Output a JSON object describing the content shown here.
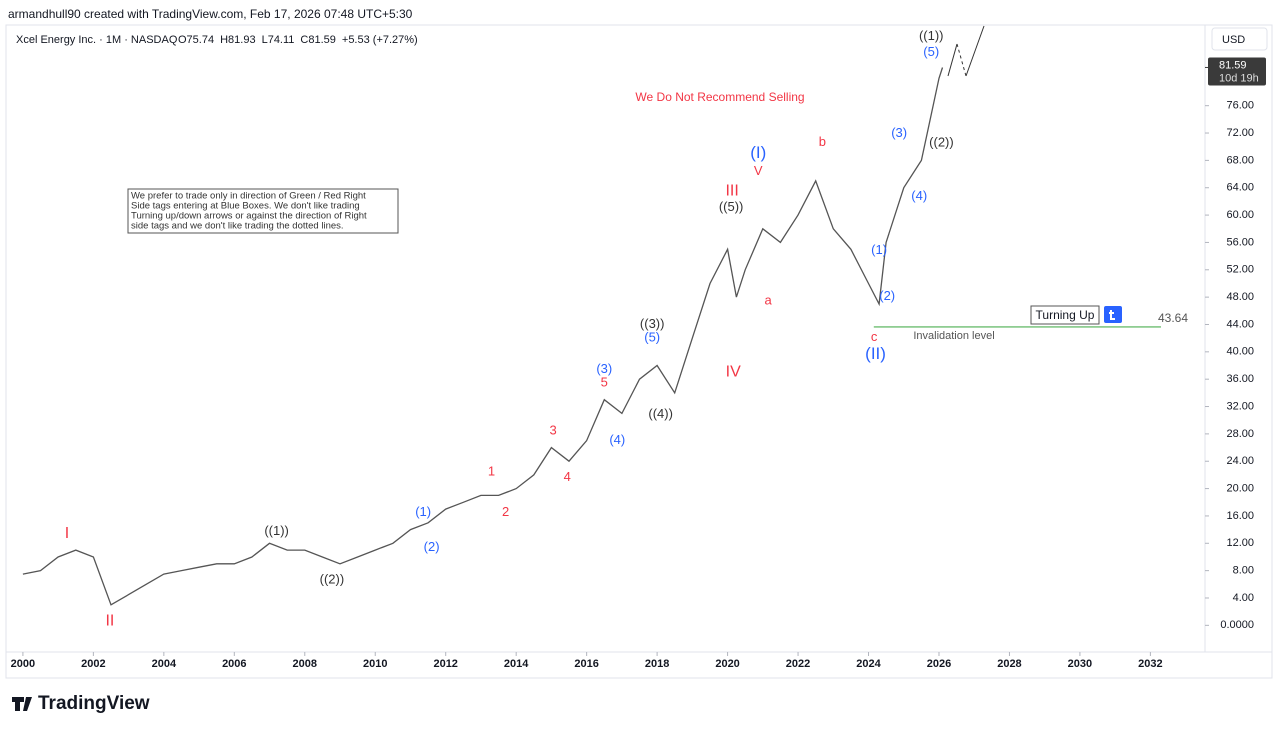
{
  "header": "armandhull90 created with TradingView.com, Feb 17, 2026 07:48 UTC+5:30",
  "brand": "TradingView",
  "chart_data": {
    "type": "line",
    "legend_title": "Xcel Energy Inc. · 1M · NASDAQ",
    "ohlc": [
      "O75.74",
      "H81.93",
      "L74.11",
      "C81.59",
      "+5.53 (+7.27%)"
    ],
    "currency": "USD",
    "last_price": 81.59,
    "countdown": "10d 19h",
    "headline": "We Do Not Recommend Selling",
    "note": [
      "We prefer to trade only in direction of Green / Red Right",
      "Side tags entering at Blue Boxes. We don't like trading",
      "Turning up/down arrows or against the direction of Right",
      "side tags and we don't like trading the dotted lines."
    ],
    "signal": "Turning Up",
    "invalidation": {
      "value": 43.64,
      "label": "Invalidation level",
      "color": "#4caf50"
    },
    "series": [
      {
        "name": "Xcel Energy Inc.",
        "color": "#555555",
        "x": [
          2000.0,
          2000.5,
          2001.0,
          2001.5,
          2002.0,
          2002.5,
          2003.0,
          2003.5,
          2004.0,
          2004.5,
          2005.0,
          2005.5,
          2006.0,
          2006.5,
          2007.0,
          2007.5,
          2008.0,
          2008.5,
          2009.0,
          2009.5,
          2010.0,
          2010.5,
          2011.0,
          2011.5,
          2012.0,
          2012.5,
          2013.0,
          2013.5,
          2014.0,
          2014.5,
          2015.0,
          2015.5,
          2016.0,
          2016.5,
          2017.0,
          2017.5,
          2018.0,
          2018.5,
          2019.0,
          2019.5,
          2020.0,
          2020.25,
          2020.5,
          2021.0,
          2021.5,
          2022.0,
          2022.5,
          2023.0,
          2023.5,
          2024.0,
          2024.3,
          2024.5,
          2025.0,
          2025.5,
          2026.0,
          2026.1
        ],
        "values": [
          7.5,
          8,
          10,
          11,
          10,
          3,
          4.5,
          6,
          7.5,
          8,
          8.5,
          9,
          9,
          10,
          12,
          11,
          11,
          10,
          9,
          10,
          11,
          12,
          14,
          15,
          17,
          18,
          19,
          19,
          20,
          22,
          26,
          24,
          27,
          33,
          31,
          36,
          38,
          34,
          42,
          50,
          55,
          48,
          52,
          58,
          56,
          60,
          65,
          58,
          55,
          50,
          47,
          56,
          64,
          68,
          80,
          81.59
        ]
      }
    ],
    "xlim": [
      1999.35,
      2033.55
    ],
    "xticks": [
      2000,
      2002,
      2004,
      2006,
      2008,
      2010,
      2012,
      2014,
      2016,
      2018,
      2020,
      2022,
      2024,
      2026,
      2028,
      2030,
      2032
    ],
    "ylim": [
      -3.9,
      87.8
    ],
    "yticks": [
      {
        "value": 0,
        "label": "0.0000"
      },
      {
        "value": 4,
        "label": "4.00"
      },
      {
        "value": 8,
        "label": "8.00"
      },
      {
        "value": 12,
        "label": "12.00"
      },
      {
        "value": 16,
        "label": "16.00"
      },
      {
        "value": 20,
        "label": "20.00"
      },
      {
        "value": 24,
        "label": "24.00"
      },
      {
        "value": 28,
        "label": "28.00"
      },
      {
        "value": 32,
        "label": "32.00"
      },
      {
        "value": 36,
        "label": "36.00"
      },
      {
        "value": 40,
        "label": "40.00"
      },
      {
        "value": 44,
        "label": "44.00"
      },
      {
        "value": 48,
        "label": "48.00"
      },
      {
        "value": 52,
        "label": "52.00"
      },
      {
        "value": 56,
        "label": "56.00"
      },
      {
        "value": 60,
        "label": "60.00"
      },
      {
        "value": 64,
        "label": "64.00"
      },
      {
        "value": 68,
        "label": "68.00"
      },
      {
        "value": 72,
        "label": "72.00"
      },
      {
        "value": 76,
        "label": "76.00"
      }
    ],
    "annotations": [
      {
        "text": "I",
        "color": "#f23645"
      },
      {
        "text": "II",
        "color": "#f23645"
      },
      {
        "text": "((1))",
        "color": "#333333"
      },
      {
        "text": "((2))",
        "color": "#333333"
      },
      {
        "text": "(1)",
        "color": "#2962ff"
      },
      {
        "text": "(2)",
        "color": "#2962ff"
      },
      {
        "text": "1",
        "color": "#f23645"
      },
      {
        "text": "2",
        "color": "#f23645"
      },
      {
        "text": "3",
        "color": "#f23645"
      },
      {
        "text": "4",
        "color": "#f23645"
      },
      {
        "text": "(3)",
        "color": "#2962ff"
      },
      {
        "text": "5",
        "color": "#f23645"
      },
      {
        "text": "(4)",
        "color": "#2962ff"
      },
      {
        "text": "((3))",
        "color": "#333333"
      },
      {
        "text": "(5)",
        "color": "#2962ff"
      },
      {
        "text": "((4))",
        "color": "#333333"
      },
      {
        "text": "III",
        "color": "#f23645"
      },
      {
        "text": "((5))",
        "color": "#333333"
      },
      {
        "text": "IV",
        "color": "#f23645"
      },
      {
        "text": "(I)",
        "color": "#2962ff"
      },
      {
        "text": "V",
        "color": "#f23645"
      },
      {
        "text": "a",
        "color": "#f23645"
      },
      {
        "text": "b",
        "color": "#f23645"
      },
      {
        "text": "c",
        "color": "#f23645"
      },
      {
        "text": "(II)",
        "color": "#2962ff"
      },
      {
        "text": "(1)",
        "color": "#2962ff"
      },
      {
        "text": "(2)",
        "color": "#2962ff"
      },
      {
        "text": "(3)",
        "color": "#2962ff"
      },
      {
        "text": "(4)",
        "color": "#2962ff"
      },
      {
        "text": "((1))",
        "color": "#333333"
      },
      {
        "text": "(5)",
        "color": "#2962ff"
      },
      {
        "text": "((2))",
        "color": "#333333"
      }
    ]
  }
}
